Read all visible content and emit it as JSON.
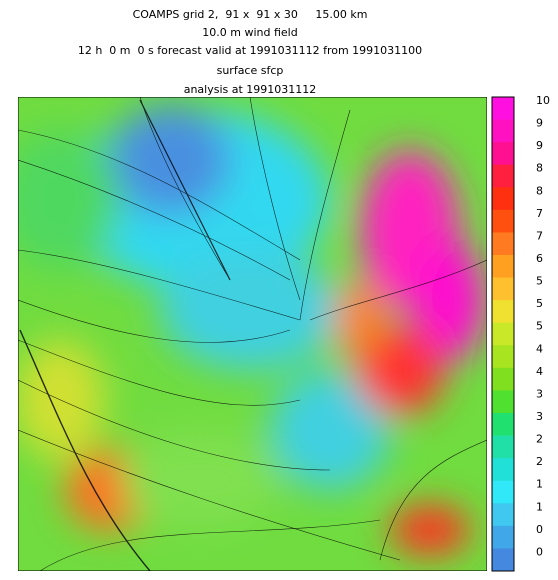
{
  "header": {
    "lines": [
      "COAMPS grid 2,  91 x  91 x 30     15.00 km",
      "10.0 m wind field",
      "12 h  0 m  0 s forecast valid at 1991031112 from 1991031100",
      "surface sfcp",
      "analysis at 1991031112"
    ]
  },
  "colorbar": {
    "labels": [
      "10",
      "9",
      "9",
      "8",
      "8",
      "7",
      "7",
      "6",
      "5",
      "5",
      "5",
      "4",
      "4",
      "3",
      "3",
      "2",
      "2",
      "1",
      "1",
      "0",
      "0"
    ],
    "colors": [
      "#ff10e0",
      "#ff10c0",
      "#ff1090",
      "#ff2040",
      "#ff3010",
      "#ff5010",
      "#ff7a20",
      "#ffa020",
      "#ffc030",
      "#f0e030",
      "#c8e828",
      "#a8e420",
      "#80e020",
      "#50e030",
      "#20e070",
      "#20e0a8",
      "#20e0d8",
      "#30e8f8",
      "#40c8f0",
      "#40a8e8",
      "#4488e0"
    ]
  }
}
